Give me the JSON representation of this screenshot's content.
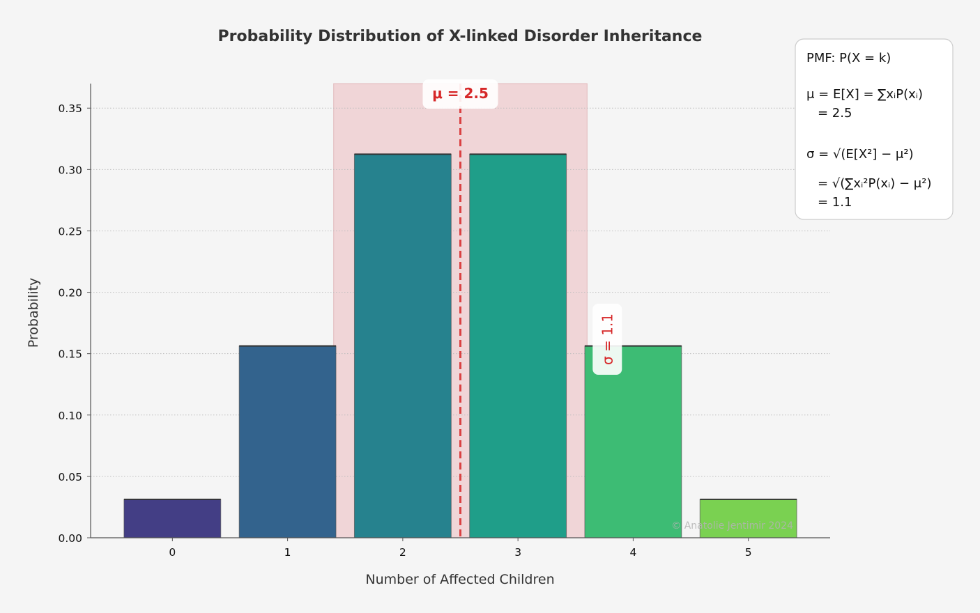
{
  "chart_data": {
    "type": "bar",
    "title": "Probability Distribution of X-linked Disorder Inheritance",
    "xlabel": "Number of Affected Children",
    "ylabel": "Probability",
    "categories": [
      "0",
      "1",
      "2",
      "3",
      "4",
      "5"
    ],
    "x": [
      0,
      1,
      2,
      3,
      4,
      5
    ],
    "values": [
      0.03125,
      0.15625,
      0.3125,
      0.3125,
      0.15625,
      0.03125
    ],
    "ylim": [
      0,
      0.37
    ],
    "yticks": [
      0.0,
      0.05,
      0.1,
      0.15,
      0.2,
      0.25,
      0.3,
      0.35
    ],
    "ytick_labels": [
      "0.00",
      "0.05",
      "0.10",
      "0.15",
      "0.20",
      "0.25",
      "0.30",
      "0.35"
    ],
    "bar_colors": [
      "#433e85",
      "#33638d",
      "#26828e",
      "#1f9e89",
      "#3dbc74",
      "#7ad151"
    ],
    "grid": "horizontal dotted",
    "mean": 2.5,
    "std": 1.1,
    "mean_label": "μ = 2.5",
    "std_label": "σ = 1.1",
    "mean_color": "#d62728",
    "band_color": "#f0d5d7",
    "watermark": "© Anatolie Jentimir 2024",
    "formula_box": {
      "pmf": "PMF: P(X = k)",
      "mu_def": "μ = E[X] = ∑xᵢP(xᵢ)",
      "mu_val": "= 2.5",
      "sigma_def": "σ = √(E[X²] − μ²)",
      "sigma_sum": "= √(∑xᵢ²P(xᵢ) − μ²)",
      "sigma_val": "= 1.1"
    }
  }
}
